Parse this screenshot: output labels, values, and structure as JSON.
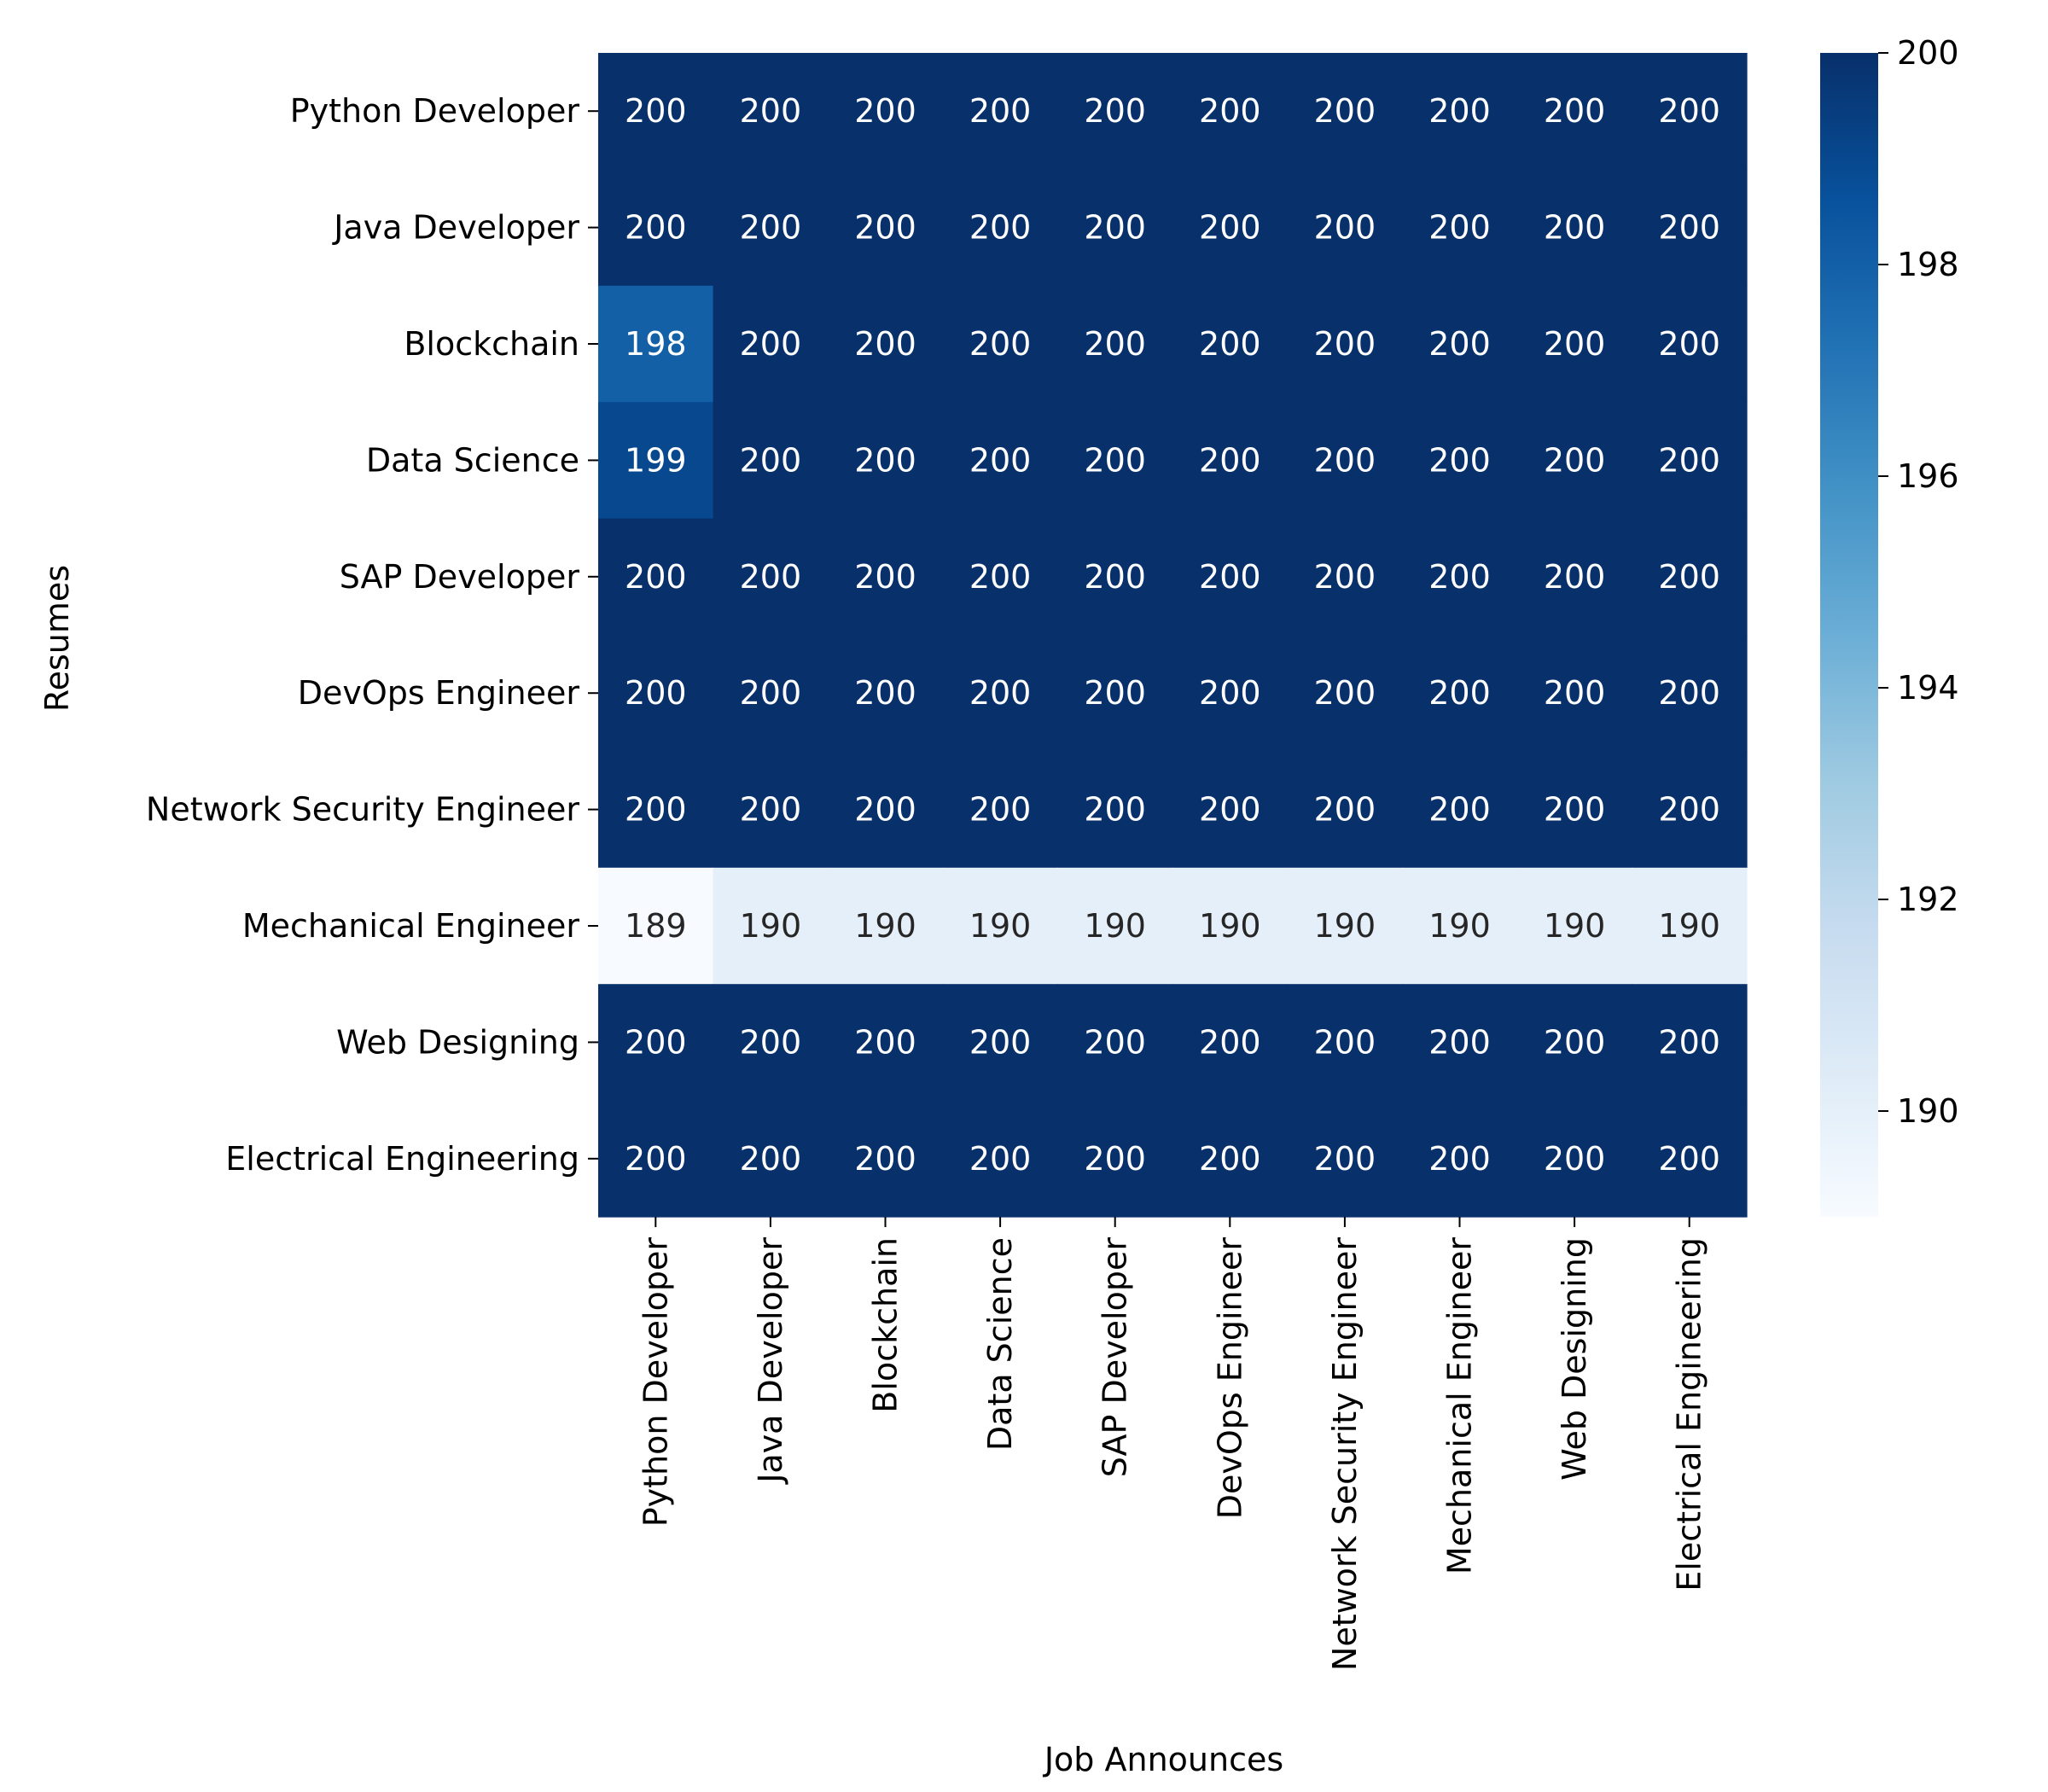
{
  "chart_data": {
    "type": "heatmap",
    "title": "",
    "xlabel": "Job Announces",
    "ylabel": "Resumes",
    "x_categories": [
      "Python Developer",
      "Java Developer",
      "Blockchain",
      "Data Science",
      "SAP Developer",
      "DevOps Engineer",
      "Network Security Engineer",
      "Mechanical Engineer",
      "Web Designing",
      "Electrical Engineering"
    ],
    "y_categories": [
      "Python Developer",
      "Java Developer",
      "Blockchain",
      "Data Science",
      "SAP Developer",
      "DevOps Engineer",
      "Network Security Engineer",
      "Mechanical Engineer",
      "Web Designing",
      "Electrical Engineering"
    ],
    "values": [
      [
        200,
        200,
        200,
        200,
        200,
        200,
        200,
        200,
        200,
        200
      ],
      [
        200,
        200,
        200,
        200,
        200,
        200,
        200,
        200,
        200,
        200
      ],
      [
        198,
        200,
        200,
        200,
        200,
        200,
        200,
        200,
        200,
        200
      ],
      [
        199,
        200,
        200,
        200,
        200,
        200,
        200,
        200,
        200,
        200
      ],
      [
        200,
        200,
        200,
        200,
        200,
        200,
        200,
        200,
        200,
        200
      ],
      [
        200,
        200,
        200,
        200,
        200,
        200,
        200,
        200,
        200,
        200
      ],
      [
        200,
        200,
        200,
        200,
        200,
        200,
        200,
        200,
        200,
        200
      ],
      [
        189,
        190,
        190,
        190,
        190,
        190,
        190,
        190,
        190,
        190
      ],
      [
        200,
        200,
        200,
        200,
        200,
        200,
        200,
        200,
        200,
        200
      ],
      [
        200,
        200,
        200,
        200,
        200,
        200,
        200,
        200,
        200,
        200
      ]
    ],
    "colormap": "Blues",
    "colorbar": {
      "min": 189,
      "max": 200,
      "ticks": [
        190,
        192,
        194,
        196,
        198,
        200
      ]
    },
    "annotations": true,
    "grid": false,
    "legend": "colorbar-right"
  }
}
